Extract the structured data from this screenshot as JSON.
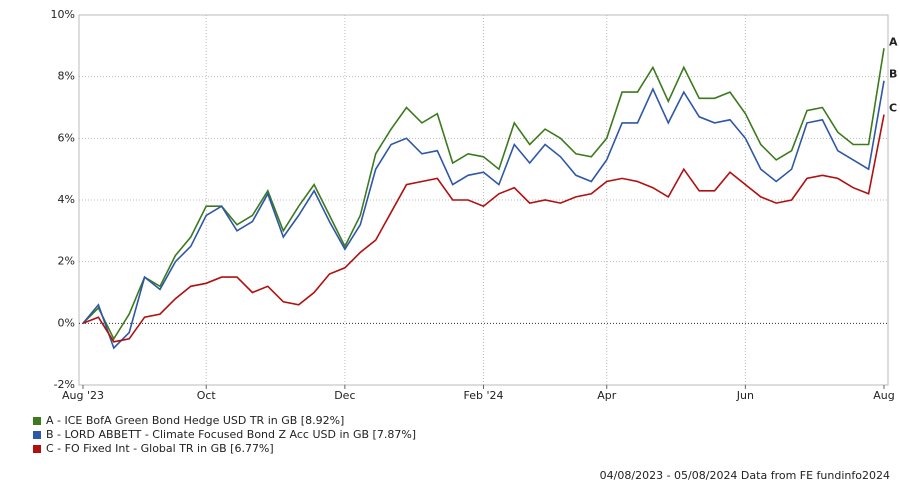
{
  "chart_data": {
    "type": "line",
    "categories": [
      "Aug '23",
      null,
      null,
      null,
      null,
      null,
      null,
      null,
      "Oct",
      null,
      null,
      null,
      null,
      null,
      null,
      null,
      null,
      "Dec",
      null,
      null,
      null,
      null,
      null,
      null,
      null,
      null,
      "Feb '24",
      null,
      null,
      null,
      null,
      null,
      null,
      null,
      "Apr",
      null,
      null,
      null,
      null,
      null,
      null,
      null,
      null,
      "Jun",
      null,
      null,
      null,
      null,
      null,
      null,
      null,
      null,
      "Aug"
    ],
    "series": [
      {
        "name": "A - ICE BofA Green Bond Hedge USD TR in GB [8.92%]",
        "label": "A",
        "color": "#3d7a1e",
        "values": [
          0,
          0.5,
          -0.5,
          0.3,
          1.5,
          1.2,
          2.2,
          2.8,
          3.8,
          3.8,
          3.2,
          3.5,
          4.3,
          3.0,
          3.8,
          4.5,
          3.5,
          2.5,
          3.5,
          5.5,
          6.3,
          7.0,
          6.5,
          6.8,
          5.2,
          5.5,
          5.4,
          5.0,
          6.5,
          5.8,
          6.3,
          6.0,
          5.5,
          5.4,
          6.0,
          7.5,
          7.5,
          8.3,
          7.2,
          8.3,
          7.3,
          7.3,
          7.5,
          6.8,
          5.8,
          5.3,
          5.6,
          6.9,
          7.0,
          6.2,
          5.8,
          5.8,
          8.92
        ]
      },
      {
        "name": "B - LORD ABBETT - Climate Focused Bond Z Acc USD in GB [7.87%]",
        "label": "B",
        "color": "#2e57a8",
        "values": [
          0,
          0.6,
          -0.8,
          -0.3,
          1.5,
          1.1,
          2.0,
          2.5,
          3.5,
          3.8,
          3.0,
          3.3,
          4.2,
          2.8,
          3.5,
          4.3,
          3.3,
          2.4,
          3.2,
          5.0,
          5.8,
          6.0,
          5.5,
          5.6,
          4.5,
          4.8,
          4.9,
          4.5,
          5.8,
          5.2,
          5.8,
          5.4,
          4.8,
          4.6,
          5.3,
          6.5,
          6.5,
          7.6,
          6.5,
          7.5,
          6.7,
          6.5,
          6.6,
          6.0,
          5.0,
          4.6,
          5.0,
          6.5,
          6.6,
          5.6,
          5.3,
          5.0,
          7.87
        ]
      },
      {
        "name": "C - FO Fixed Int - Global TR in GB [6.77%]",
        "label": "C",
        "color": "#b01010",
        "values": [
          0,
          0.2,
          -0.6,
          -0.5,
          0.2,
          0.3,
          0.8,
          1.2,
          1.3,
          1.5,
          1.5,
          1.0,
          1.2,
          0.7,
          0.6,
          1.0,
          1.6,
          1.8,
          2.3,
          2.7,
          3.6,
          4.5,
          4.6,
          4.7,
          4.0,
          4.0,
          3.8,
          4.2,
          4.4,
          3.9,
          4.0,
          3.9,
          4.1,
          4.2,
          4.6,
          4.7,
          4.6,
          4.4,
          4.1,
          5.0,
          4.3,
          4.3,
          4.9,
          4.5,
          4.1,
          3.9,
          4.0,
          4.7,
          4.8,
          4.7,
          4.4,
          4.2,
          6.77
        ]
      }
    ],
    "ylim": [
      -2,
      10
    ],
    "yticks": [
      {
        "value": -2,
        "label": "-2%"
      },
      {
        "value": 0,
        "label": "0%"
      },
      {
        "value": 2,
        "label": "2%"
      },
      {
        "value": 4,
        "label": "4%"
      },
      {
        "value": 6,
        "label": "6%"
      },
      {
        "value": 8,
        "label": "8%"
      },
      {
        "value": 10,
        "label": "10%"
      }
    ],
    "grid": true,
    "footer": "04/08/2023 - 05/08/2024 Data from FE fundinfo2024"
  }
}
